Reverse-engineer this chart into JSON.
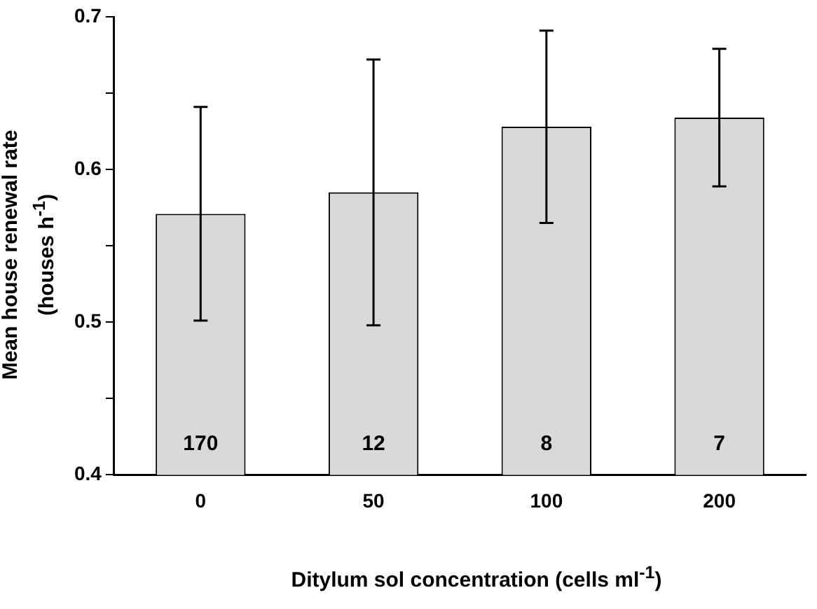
{
  "chart_data": {
    "type": "bar",
    "xlabel": "Ditylum sol concentration (cells ml$^{-1}$)",
    "ylabel": "Mean house renewal rate (houses h$^{-1}$)",
    "categories": [
      "0",
      "50",
      "100",
      "200"
    ],
    "values": [
      0.571,
      0.585,
      0.628,
      0.634
    ],
    "errors": [
      0.07,
      0.087,
      0.063,
      0.045
    ],
    "color": "#d9d9d9",
    "ylim": [
      0.4,
      0.7
    ],
    "yticks": [
      0.4,
      {
        "value": 0.45,
        "label": null
      },
      0.5,
      {
        "value": 0.55,
        "label": null
      },
      0.6,
      {
        "value": 0.65,
        "label": null
      },
      0.7
    ],
    "annotations": [
      "170",
      "12",
      "8",
      "7"
    ],
    "grid": false,
    "legend": false
  }
}
